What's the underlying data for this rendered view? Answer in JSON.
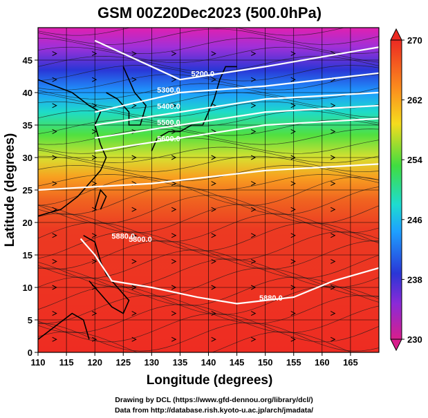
{
  "title": "GSM 00Z20Dec2023 (500.0hPa)",
  "xlabel": "Longitude (degrees)",
  "ylabel": "Latitude  (degrees)",
  "x_ticks": [
    110,
    115,
    120,
    125,
    130,
    135,
    140,
    145,
    150,
    155,
    160,
    165
  ],
  "y_ticks": [
    0,
    5,
    10,
    15,
    20,
    25,
    30,
    35,
    40,
    45
  ],
  "xlim": [
    110,
    170
  ],
  "ylim": [
    0,
    50
  ],
  "colorbar": {
    "ticks": [
      270,
      262,
      254,
      246,
      238,
      230
    ],
    "range": [
      230,
      270
    ],
    "colors": [
      "#d81e8c",
      "#2a36d6",
      "#1ec8ff",
      "#40dd40",
      "#f5dc1e",
      "#fb8c1e",
      "#ec2a22"
    ]
  },
  "contour_labels": [
    "5200.0",
    "5300.0",
    "5400.0",
    "5500.0",
    "5600.0",
    "5800.0",
    "5880.0",
    "5880.0"
  ],
  "credits": {
    "line1": "Drawing by DCL (https://www.gfd-dennou.org/library/dcl/)",
    "line2": "Data from http://database.rish.kyoto-u.ac.jp/arch/jmadata/"
  },
  "chart_data": {
    "type": "heatmap",
    "title": "GSM 00Z20Dec2023 (500.0hPa)",
    "xlabel": "Longitude (degrees)",
    "ylabel": "Latitude  (degrees)",
    "xlim": [
      110,
      170
    ],
    "ylim": [
      0,
      50
    ],
    "grid": true,
    "temperature_field": {
      "units_range": [
        230,
        270
      ],
      "lat": [
        0,
        5,
        10,
        15,
        20,
        25,
        30,
        35,
        40,
        45,
        50
      ],
      "values_by_lat": [
        268,
        268,
        268,
        267,
        266,
        264,
        258,
        252,
        245,
        237,
        232
      ]
    },
    "height_contours": [
      {
        "label": "5200.0",
        "lat_at": {
          "120": 48,
          "135": 42,
          "150": 44,
          "170": 47
        }
      },
      {
        "label": "5300.0",
        "lat_at": {
          "120": 37,
          "135": 40,
          "150": 41,
          "170": 43
        }
      },
      {
        "label": "5400.0",
        "lat_at": {
          "120": 35,
          "135": 37,
          "150": 39,
          "170": 40
        }
      },
      {
        "label": "5500.0",
        "lat_at": {
          "120": 33,
          "135": 35,
          "150": 37,
          "170": 38
        }
      },
      {
        "label": "5600.0",
        "lat_at": {
          "120": 31,
          "135": 33,
          "150": 35,
          "170": 36
        }
      },
      {
        "label": "5800.0",
        "lat_at": {
          "110": 25,
          "130": 26,
          "150": 28,
          "170": 29
        }
      },
      {
        "label": "5880.0",
        "path": [
          [
            117.5,
            17.5
          ],
          [
            120,
            15
          ],
          [
            123,
            11
          ],
          [
            130,
            10
          ],
          [
            138,
            8.5
          ],
          [
            145,
            7.5
          ],
          [
            155,
            8.5
          ],
          [
            162,
            11
          ],
          [
            170,
            13
          ]
        ]
      }
    ]
  }
}
